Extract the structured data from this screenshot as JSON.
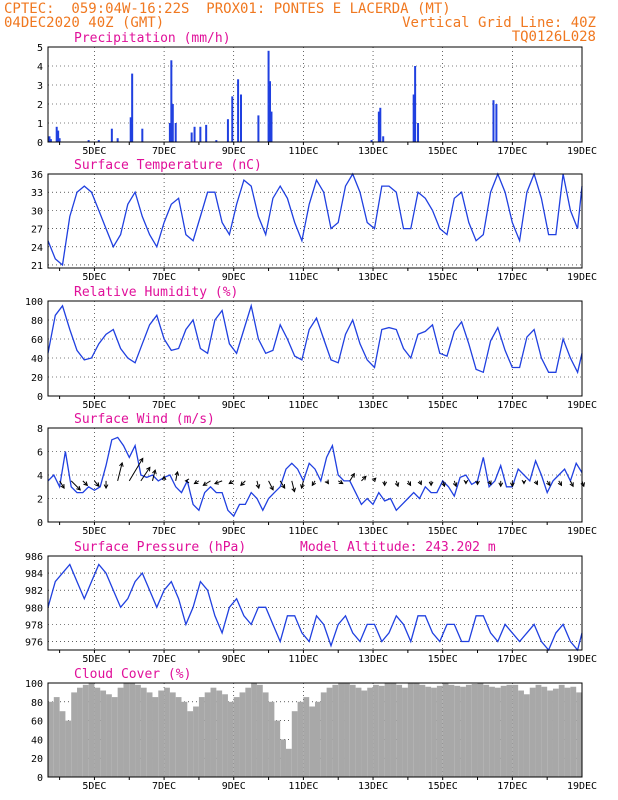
{
  "header": {
    "line1_left": "CPTEC:  059:04W-16:22S  PROX01: PONTES E LACERDA (MT)",
    "line2_left": "04DEC2020 40Z (GMT)",
    "line2_right": "Vertical Grid Line: 40Z",
    "line3_right": "TQ0126L028"
  },
  "colors": {
    "header": "#f07820",
    "panel_title": "#e0109a",
    "series": "#2040e0",
    "cloud": "#a8a8a8",
    "arrows": "#000000"
  },
  "x_axis": {
    "range_hours": [
      0,
      368
    ],
    "ticks": [
      {
        "h": 32,
        "label": "5DEC"
      },
      {
        "h": 80,
        "label": "7DEC"
      },
      {
        "h": 128,
        "label": "9DEC"
      },
      {
        "h": 176,
        "label": "11DEC"
      },
      {
        "h": 224,
        "label": "13DEC"
      },
      {
        "h": 272,
        "label": "15DEC"
      },
      {
        "h": 320,
        "label": "17DEC"
      },
      {
        "h": 368,
        "label": "19DEC"
      }
    ]
  },
  "chart_data": [
    {
      "type": "bar",
      "title": "Precipitation (mm/h)",
      "ylim": [
        0,
        5
      ],
      "yticks": [
        0,
        1,
        2,
        3,
        4,
        5
      ],
      "bars": [
        [
          1,
          0.3
        ],
        [
          2,
          0.15
        ],
        [
          6,
          0.8
        ],
        [
          7,
          0.6
        ],
        [
          8,
          0.2
        ],
        [
          28,
          0.1
        ],
        [
          35,
          0.1
        ],
        [
          44,
          0.7
        ],
        [
          48,
          0.2
        ],
        [
          57,
          1.3
        ],
        [
          58,
          3.6
        ],
        [
          65,
          0.7
        ],
        [
          84,
          1.0
        ],
        [
          85,
          4.3
        ],
        [
          86,
          2.0
        ],
        [
          88,
          1.0
        ],
        [
          99,
          0.5
        ],
        [
          101,
          0.8
        ],
        [
          105,
          0.8
        ],
        [
          109,
          0.9
        ],
        [
          116,
          0.1
        ],
        [
          124,
          1.2
        ],
        [
          127,
          2.4
        ],
        [
          131,
          3.3
        ],
        [
          133,
          2.5
        ],
        [
          145,
          1.4
        ],
        [
          152,
          4.8
        ],
        [
          153,
          3.2
        ],
        [
          154,
          1.6
        ],
        [
          223,
          0.1
        ],
        [
          228,
          1.6
        ],
        [
          229,
          1.8
        ],
        [
          231,
          0.3
        ],
        [
          252,
          2.5
        ],
        [
          253,
          4.0
        ],
        [
          255,
          1.0
        ],
        [
          307,
          2.2
        ],
        [
          309,
          2.0
        ]
      ]
    },
    {
      "type": "line",
      "title": "Surface Temperature (nC)",
      "ylim": [
        20.5,
        36
      ],
      "yticks": [
        21,
        24,
        27,
        30,
        33,
        36
      ],
      "x": [
        0,
        5,
        10,
        15,
        20,
        25,
        30,
        35,
        40,
        45,
        50,
        55,
        60,
        65,
        70,
        75,
        80,
        85,
        90,
        95,
        100,
        105,
        110,
        115,
        120,
        125,
        130,
        135,
        140,
        145,
        150,
        155,
        160,
        165,
        170,
        175,
        180,
        185,
        190,
        195,
        200,
        205,
        210,
        215,
        220,
        225,
        230,
        235,
        240,
        245,
        250,
        255,
        260,
        265,
        270,
        275,
        280,
        285,
        290,
        295,
        300,
        305,
        310,
        315,
        320,
        325,
        330,
        335,
        340,
        345,
        350,
        355,
        360,
        365,
        368
      ],
      "values": [
        25,
        22,
        21,
        29,
        33,
        34,
        33,
        30,
        27,
        24,
        26,
        31,
        33,
        29,
        26,
        24,
        28,
        31,
        32,
        26,
        25,
        29,
        33,
        33,
        28,
        26,
        31,
        35,
        34,
        29,
        26,
        32,
        34,
        32,
        28,
        25,
        31,
        35,
        33,
        27,
        28,
        34,
        36,
        33,
        28,
        27,
        34,
        34,
        33,
        27,
        27,
        33,
        32,
        30,
        27,
        26,
        32,
        33,
        28,
        25,
        26,
        33,
        36,
        33,
        28,
        25,
        33,
        36,
        32,
        26,
        26,
        36,
        30,
        27,
        34
      ]
    },
    {
      "type": "line",
      "title": "Relative Humidity (%)",
      "ylim": [
        0,
        100
      ],
      "yticks": [
        0,
        20,
        40,
        60,
        80,
        100
      ],
      "x": [
        0,
        5,
        10,
        15,
        20,
        25,
        30,
        35,
        40,
        45,
        50,
        55,
        60,
        65,
        70,
        75,
        80,
        85,
        90,
        95,
        100,
        105,
        110,
        115,
        120,
        125,
        130,
        135,
        140,
        145,
        150,
        155,
        160,
        165,
        170,
        175,
        180,
        185,
        190,
        195,
        200,
        205,
        210,
        215,
        220,
        225,
        230,
        235,
        240,
        245,
        250,
        255,
        260,
        265,
        270,
        275,
        280,
        285,
        290,
        295,
        300,
        305,
        310,
        315,
        320,
        325,
        330,
        335,
        340,
        345,
        350,
        355,
        360,
        365,
        368
      ],
      "values": [
        45,
        85,
        95,
        70,
        48,
        38,
        40,
        55,
        65,
        70,
        50,
        40,
        35,
        55,
        75,
        85,
        60,
        48,
        50,
        70,
        80,
        50,
        45,
        80,
        90,
        55,
        45,
        70,
        95,
        60,
        45,
        48,
        75,
        60,
        42,
        38,
        70,
        82,
        60,
        38,
        35,
        65,
        80,
        55,
        38,
        30,
        70,
        72,
        70,
        50,
        40,
        65,
        68,
        75,
        45,
        42,
        68,
        78,
        55,
        28,
        25,
        58,
        72,
        48,
        30,
        30,
        62,
        70,
        40,
        25,
        25,
        60,
        40,
        25,
        45
      ]
    },
    {
      "type": "line",
      "title": "Surface Wind (m/s)",
      "ylim": [
        0,
        8
      ],
      "yticks": [
        0,
        2,
        4,
        6,
        8
      ],
      "x": [
        0,
        4,
        8,
        12,
        16,
        20,
        24,
        28,
        32,
        36,
        40,
        44,
        48,
        52,
        56,
        60,
        64,
        68,
        72,
        76,
        80,
        84,
        88,
        92,
        96,
        100,
        104,
        108,
        112,
        116,
        120,
        124,
        128,
        132,
        136,
        140,
        144,
        148,
        152,
        156,
        160,
        164,
        168,
        172,
        176,
        180,
        184,
        188,
        192,
        196,
        200,
        204,
        208,
        212,
        216,
        220,
        224,
        228,
        232,
        236,
        240,
        244,
        248,
        252,
        256,
        260,
        264,
        268,
        272,
        276,
        280,
        284,
        288,
        292,
        296,
        300,
        304,
        308,
        312,
        316,
        320,
        324,
        328,
        332,
        336,
        340,
        344,
        348,
        352,
        356,
        360,
        364,
        368
      ],
      "values": [
        3.5,
        4,
        3,
        6,
        3,
        2.5,
        2.5,
        3,
        2.7,
        3,
        4.8,
        7,
        7.2,
        6.5,
        5.5,
        6.5,
        4,
        3.8,
        4,
        3.5,
        3.8,
        4,
        3,
        2.5,
        3.5,
        1.5,
        1,
        2.5,
        3,
        2.5,
        2.5,
        1,
        0.5,
        1.5,
        1.5,
        2.5,
        2,
        1,
        2,
        2.5,
        3,
        4.5,
        5,
        4.5,
        3.5,
        5,
        4.5,
        3.5,
        5.5,
        6.5,
        4,
        3.5,
        3.5,
        2.5,
        1.5,
        2,
        1.5,
        2.5,
        1.8,
        2,
        1,
        1.5,
        2,
        2.5,
        2,
        3,
        2.5,
        2.5,
        3.5,
        3,
        2.2,
        3.8,
        4,
        3.2,
        3.5,
        5.5,
        3,
        3.5,
        4.8,
        3,
        3,
        4.5,
        4,
        3.5,
        5.2,
        4,
        2.5,
        3.5,
        4,
        4.5,
        3.5,
        5,
        4.2
      ]
    },
    {
      "type": "line",
      "title": "Surface Pressure (hPa)",
      "subtitle": "Model Altitude: 243.202 m",
      "ylim": [
        975,
        986
      ],
      "yticks": [
        976,
        978,
        980,
        982,
        984,
        986
      ],
      "x": [
        0,
        5,
        10,
        15,
        20,
        25,
        30,
        35,
        40,
        45,
        50,
        55,
        60,
        65,
        70,
        75,
        80,
        85,
        90,
        95,
        100,
        105,
        110,
        115,
        120,
        125,
        130,
        135,
        140,
        145,
        150,
        155,
        160,
        165,
        170,
        175,
        180,
        185,
        190,
        195,
        200,
        205,
        210,
        215,
        220,
        225,
        230,
        235,
        240,
        245,
        250,
        255,
        260,
        265,
        270,
        275,
        280,
        285,
        290,
        295,
        300,
        305,
        310,
        315,
        320,
        325,
        330,
        335,
        340,
        345,
        350,
        355,
        360,
        365,
        368
      ],
      "values": [
        980,
        983,
        984,
        985,
        983,
        981,
        983,
        985,
        984,
        982,
        980,
        981,
        983,
        984,
        982,
        980,
        982,
        983,
        981,
        978,
        980,
        983,
        982,
        979,
        977,
        980,
        981,
        979,
        978,
        980,
        980,
        978,
        976,
        979,
        979,
        977,
        976,
        979,
        978,
        975.5,
        978,
        979,
        977,
        976,
        978,
        978,
        976,
        977,
        979,
        978,
        976,
        979,
        979,
        977,
        976,
        978,
        978,
        976,
        976,
        979,
        979,
        977,
        976,
        978,
        977,
        976,
        977,
        978,
        976,
        975,
        977,
        978,
        976,
        975,
        977
      ]
    },
    {
      "type": "bar",
      "title": "Cloud Cover (%)",
      "ylim": [
        0,
        100
      ],
      "yticks": [
        0,
        20,
        40,
        60,
        80,
        100
      ],
      "x_step_hours": 4,
      "values": [
        80,
        85,
        70,
        60,
        90,
        95,
        98,
        100,
        95,
        92,
        88,
        85,
        95,
        100,
        100,
        98,
        95,
        90,
        85,
        92,
        95,
        90,
        85,
        80,
        70,
        75,
        85,
        90,
        95,
        92,
        88,
        80,
        85,
        90,
        95,
        100,
        98,
        90,
        80,
        60,
        40,
        30,
        70,
        80,
        85,
        75,
        80,
        90,
        95,
        98,
        100,
        100,
        98,
        95,
        92,
        95,
        98,
        97,
        100,
        100,
        98,
        95,
        100,
        100,
        98,
        96,
        95,
        97,
        100,
        98,
        97,
        96,
        98,
        99,
        100,
        98,
        96,
        95,
        97,
        98,
        98,
        92,
        88,
        95,
        98,
        96,
        92,
        94,
        98,
        95,
        96,
        90
      ]
    },
    {
      "type": "vector",
      "title": "Surface Wind (m/s) direction arrows",
      "x": [
        8,
        16,
        24,
        32,
        40,
        48,
        56,
        64,
        72,
        80,
        88,
        96,
        104,
        112,
        120,
        128,
        136,
        144,
        152,
        160,
        168,
        176,
        184,
        192,
        200,
        208,
        216,
        224,
        232,
        240,
        248,
        256,
        264,
        272,
        280,
        288,
        296,
        304,
        312,
        320,
        328,
        336,
        344,
        352,
        360,
        368
      ],
      "u": [
        0.5,
        1,
        0.5,
        0.5,
        0,
        0.5,
        1.5,
        1,
        0.3,
        0,
        0.2,
        -0.2,
        -0.5,
        -0.8,
        -0.8,
        -0.5,
        -0.5,
        0.2,
        0.5,
        0.5,
        0.3,
        -0.2,
        -0.3,
        0.2,
        0.5,
        0.5,
        0.5,
        0.3,
        0,
        0.2,
        0.3,
        0.2,
        0,
        0.2,
        0.2,
        0,
        0,
        0.2,
        0,
        0,
        0,
        0.2,
        0.3,
        0.3,
        0.3,
        0.2
      ],
      "v": [
        -0.8,
        -1,
        -0.5,
        -0.6,
        -0.8,
        2,
        2.5,
        1.5,
        1.2,
        0.5,
        1,
        0,
        -0.3,
        -0.5,
        -0.3,
        -0.3,
        -0.5,
        -0.8,
        -1,
        -0.8,
        -1.2,
        -0.8,
        -0.5,
        -0.3,
        -0.3,
        0.8,
        0.5,
        0.3,
        -0.5,
        -0.6,
        -0.5,
        -0.4,
        -0.5,
        -0.6,
        -0.6,
        -0.3,
        -0.4,
        -0.4,
        -0.6,
        -0.6,
        -0.3,
        -0.4,
        -0.5,
        -0.5,
        -0.6,
        -0.6
      ]
    }
  ]
}
